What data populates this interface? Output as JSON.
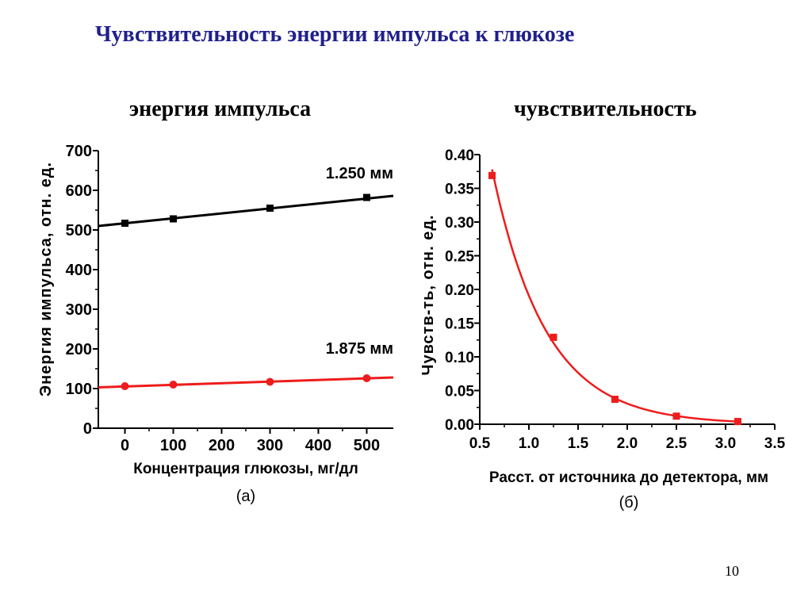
{
  "slide": {
    "title": "Чувствительность энергии импульса к глюкозе",
    "page_number": "10"
  },
  "chart_data": [
    {
      "type": "line",
      "title": "энергия импульса",
      "xlabel": "Концентрация глюкозы, мг/дл",
      "ylabel": "Энергия импульса, отн. ед.",
      "caption": "(а)",
      "xlim": [
        -55,
        555
      ],
      "ylim": [
        0,
        700
      ],
      "xticks": [
        0,
        100,
        200,
        300,
        400,
        500
      ],
      "yticks": [
        0,
        100,
        200,
        300,
        400,
        500,
        600,
        700
      ],
      "grid": false,
      "series": [
        {
          "name": "1.250 мм",
          "color": "#000000",
          "marker": "square",
          "x": [
            0,
            100,
            300,
            500
          ],
          "y": [
            517,
            528,
            555,
            582
          ],
          "fit": [
            [
              -55,
              510
            ],
            [
              555,
              586
            ]
          ]
        },
        {
          "name": "1.875 мм",
          "color": "#ee1c1c",
          "marker": "circle",
          "x": [
            0,
            100,
            300,
            500
          ],
          "y": [
            106,
            110,
            117,
            126
          ],
          "fit": [
            [
              -55,
              103
            ],
            [
              555,
              128
            ]
          ]
        }
      ]
    },
    {
      "type": "line",
      "title": "чувствительность",
      "xlabel": "Расст. от источника до детектора, мм",
      "ylabel": "Чувств-ть, отн. ед.",
      "caption": "(б)",
      "xlim": [
        0.5,
        3.5
      ],
      "ylim": [
        0,
        0.4
      ],
      "xticks": [
        "0.5",
        "1.0",
        "1.5",
        "2.0",
        "2.5",
        "3.0",
        "3.5"
      ],
      "yticks": [
        "0.00",
        "0.05",
        "0.10",
        "0.15",
        "0.20",
        "0.25",
        "0.30",
        "0.35",
        "0.40"
      ],
      "grid": false,
      "series": [
        {
          "color": "#ee1c1c",
          "marker": "square",
          "x": [
            0.625,
            1.25,
            1.875,
            2.5,
            3.125
          ],
          "y": [
            0.369,
            0.129,
            0.037,
            0.012,
            0.004
          ]
        }
      ]
    }
  ]
}
